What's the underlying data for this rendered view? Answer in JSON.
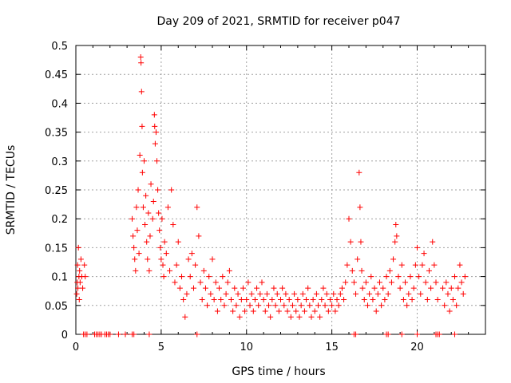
{
  "chart_data": {
    "type": "scatter",
    "title": "Day 209 of 2021, SRMTID for receiver p047",
    "xlabel": "GPS time / hours",
    "ylabel": "SRMTID / TECUs",
    "xlim": [
      0,
      24
    ],
    "ylim": [
      0,
      0.5
    ],
    "xticks": [
      0,
      5,
      10,
      15,
      20
    ],
    "yticks": [
      0,
      0.05,
      0.1,
      0.15,
      0.2,
      0.25,
      0.3,
      0.35,
      0.4,
      0.45,
      0.5
    ],
    "xtick_labels": [
      "0",
      "5",
      "10",
      "15",
      "20"
    ],
    "ytick_labels": [
      "0",
      "0.05",
      "0.1",
      "0.15",
      "0.2",
      "0.25",
      "0.3",
      "0.35",
      "0.4",
      "0.45",
      "0.5"
    ],
    "grid": true,
    "marker": "+",
    "color": "#ff0000",
    "series": [
      {
        "name": "SRMTID",
        "points": [
          [
            0.05,
            0.07
          ],
          [
            0.08,
            0.09
          ],
          [
            0.1,
            0.12
          ],
          [
            0.12,
            0.08
          ],
          [
            0.15,
            0.15
          ],
          [
            0.18,
            0.1
          ],
          [
            0.2,
            0.06
          ],
          [
            0.22,
            0.11
          ],
          [
            0.25,
            0.09
          ],
          [
            0.3,
            0.13
          ],
          [
            0.35,
            0.1
          ],
          [
            0.4,
            0.08
          ],
          [
            0.5,
            0.12
          ],
          [
            0.55,
            0.1
          ],
          [
            3.3,
            0.2
          ],
          [
            3.35,
            0.17
          ],
          [
            3.4,
            0.15
          ],
          [
            3.45,
            0.13
          ],
          [
            3.5,
            0.11
          ],
          [
            3.55,
            0.22
          ],
          [
            3.6,
            0.18
          ],
          [
            3.65,
            0.25
          ],
          [
            3.7,
            0.14
          ],
          [
            3.75,
            0.31
          ],
          [
            3.8,
            0.48
          ],
          [
            3.82,
            0.47
          ],
          [
            3.85,
            0.42
          ],
          [
            3.88,
            0.36
          ],
          [
            3.9,
            0.28
          ],
          [
            3.95,
            0.22
          ],
          [
            4.0,
            0.3
          ],
          [
            4.05,
            0.19
          ],
          [
            4.1,
            0.24
          ],
          [
            4.15,
            0.16
          ],
          [
            4.2,
            0.13
          ],
          [
            4.25,
            0.21
          ],
          [
            4.3,
            0.11
          ],
          [
            4.35,
            0.17
          ],
          [
            4.4,
            0.26
          ],
          [
            4.5,
            0.2
          ],
          [
            4.55,
            0.23
          ],
          [
            4.6,
            0.38
          ],
          [
            4.62,
            0.36
          ],
          [
            4.65,
            0.33
          ],
          [
            4.7,
            0.35
          ],
          [
            4.75,
            0.3
          ],
          [
            4.8,
            0.25
          ],
          [
            4.85,
            0.21
          ],
          [
            4.9,
            0.18
          ],
          [
            4.95,
            0.15
          ],
          [
            5.0,
            0.13
          ],
          [
            5.05,
            0.2
          ],
          [
            5.1,
            0.12
          ],
          [
            5.15,
            0.1
          ],
          [
            5.2,
            0.16
          ],
          [
            5.3,
            0.14
          ],
          [
            5.4,
            0.22
          ],
          [
            5.5,
            0.11
          ],
          [
            5.6,
            0.25
          ],
          [
            5.7,
            0.19
          ],
          [
            5.8,
            0.09
          ],
          [
            5.9,
            0.12
          ],
          [
            6.0,
            0.16
          ],
          [
            6.1,
            0.08
          ],
          [
            6.2,
            0.1
          ],
          [
            6.3,
            0.06
          ],
          [
            6.4,
            0.03
          ],
          [
            6.5,
            0.07
          ],
          [
            6.6,
            0.13
          ],
          [
            6.7,
            0.1
          ],
          [
            6.8,
            0.14
          ],
          [
            6.9,
            0.08
          ],
          [
            7.0,
            0.12
          ],
          [
            7.1,
            0.22
          ],
          [
            7.2,
            0.17
          ],
          [
            7.3,
            0.09
          ],
          [
            7.4,
            0.06
          ],
          [
            7.5,
            0.11
          ],
          [
            7.6,
            0.08
          ],
          [
            7.7,
            0.05
          ],
          [
            7.8,
            0.1
          ],
          [
            7.9,
            0.07
          ],
          [
            8.0,
            0.13
          ],
          [
            8.1,
            0.06
          ],
          [
            8.2,
            0.09
          ],
          [
            8.3,
            0.04
          ],
          [
            8.4,
            0.08
          ],
          [
            8.5,
            0.06
          ],
          [
            8.6,
            0.1
          ],
          [
            8.7,
            0.05
          ],
          [
            8.8,
            0.07
          ],
          [
            8.9,
            0.09
          ],
          [
            9.0,
            0.11
          ],
          [
            9.1,
            0.06
          ],
          [
            9.2,
            0.04
          ],
          [
            9.3,
            0.08
          ],
          [
            9.4,
            0.05
          ],
          [
            9.5,
            0.07
          ],
          [
            9.6,
            0.03
          ],
          [
            9.7,
            0.06
          ],
          [
            9.8,
            0.08
          ],
          [
            9.9,
            0.04
          ],
          [
            10.0,
            0.06
          ],
          [
            10.1,
            0.09
          ],
          [
            10.2,
            0.05
          ],
          [
            10.3,
            0.07
          ],
          [
            10.4,
            0.04
          ],
          [
            10.5,
            0.06
          ],
          [
            10.6,
            0.08
          ],
          [
            10.7,
            0.05
          ],
          [
            10.8,
            0.07
          ],
          [
            10.9,
            0.09
          ],
          [
            11.0,
            0.06
          ],
          [
            11.1,
            0.04
          ],
          [
            11.2,
            0.07
          ],
          [
            11.3,
            0.05
          ],
          [
            11.4,
            0.03
          ],
          [
            11.5,
            0.06
          ],
          [
            11.6,
            0.08
          ],
          [
            11.7,
            0.05
          ],
          [
            11.8,
            0.07
          ],
          [
            11.9,
            0.04
          ],
          [
            12.0,
            0.06
          ],
          [
            12.1,
            0.08
          ],
          [
            12.2,
            0.05
          ],
          [
            12.3,
            0.07
          ],
          [
            12.4,
            0.04
          ],
          [
            12.5,
            0.06
          ],
          [
            12.6,
            0.03
          ],
          [
            12.7,
            0.05
          ],
          [
            12.8,
            0.07
          ],
          [
            12.9,
            0.04
          ],
          [
            13.0,
            0.06
          ],
          [
            13.1,
            0.03
          ],
          [
            13.2,
            0.05
          ],
          [
            13.3,
            0.07
          ],
          [
            13.4,
            0.04
          ],
          [
            13.5,
            0.06
          ],
          [
            13.6,
            0.08
          ],
          [
            13.7,
            0.05
          ],
          [
            13.8,
            0.03
          ],
          [
            13.9,
            0.06
          ],
          [
            14.0,
            0.04
          ],
          [
            14.1,
            0.07
          ],
          [
            14.2,
            0.05
          ],
          [
            14.3,
            0.03
          ],
          [
            14.4,
            0.06
          ],
          [
            14.5,
            0.08
          ],
          [
            14.6,
            0.05
          ],
          [
            14.7,
            0.07
          ],
          [
            14.8,
            0.04
          ],
          [
            14.9,
            0.06
          ],
          [
            15.0,
            0.05
          ],
          [
            15.1,
            0.07
          ],
          [
            15.2,
            0.04
          ],
          [
            15.3,
            0.06
          ],
          [
            15.4,
            0.05
          ],
          [
            15.5,
            0.07
          ],
          [
            15.6,
            0.08
          ],
          [
            15.7,
            0.06
          ],
          [
            15.8,
            0.09
          ],
          [
            15.9,
            0.12
          ],
          [
            16.0,
            0.2
          ],
          [
            16.1,
            0.16
          ],
          [
            16.2,
            0.11
          ],
          [
            16.3,
            0.09
          ],
          [
            16.4,
            0.07
          ],
          [
            16.5,
            0.13
          ],
          [
            16.6,
            0.28
          ],
          [
            16.65,
            0.22
          ],
          [
            16.7,
            0.16
          ],
          [
            16.75,
            0.11
          ],
          [
            16.8,
            0.08
          ],
          [
            16.9,
            0.06
          ],
          [
            17.0,
            0.09
          ],
          [
            17.1,
            0.05
          ],
          [
            17.2,
            0.07
          ],
          [
            17.3,
            0.1
          ],
          [
            17.4,
            0.06
          ],
          [
            17.5,
            0.08
          ],
          [
            17.6,
            0.04
          ],
          [
            17.7,
            0.07
          ],
          [
            17.8,
            0.09
          ],
          [
            17.9,
            0.05
          ],
          [
            18.0,
            0.08
          ],
          [
            18.1,
            0.06
          ],
          [
            18.2,
            0.1
          ],
          [
            18.3,
            0.07
          ],
          [
            18.4,
            0.11
          ],
          [
            18.5,
            0.09
          ],
          [
            18.6,
            0.13
          ],
          [
            18.7,
            0.16
          ],
          [
            18.75,
            0.19
          ],
          [
            18.8,
            0.17
          ],
          [
            18.9,
            0.1
          ],
          [
            19.0,
            0.08
          ],
          [
            19.1,
            0.12
          ],
          [
            19.2,
            0.06
          ],
          [
            19.3,
            0.09
          ],
          [
            19.4,
            0.05
          ],
          [
            19.5,
            0.07
          ],
          [
            19.6,
            0.1
          ],
          [
            19.7,
            0.06
          ],
          [
            19.8,
            0.08
          ],
          [
            19.9,
            0.12
          ],
          [
            20.0,
            0.15
          ],
          [
            20.1,
            0.1
          ],
          [
            20.2,
            0.07
          ],
          [
            20.3,
            0.12
          ],
          [
            20.4,
            0.14
          ],
          [
            20.5,
            0.09
          ],
          [
            20.6,
            0.06
          ],
          [
            20.7,
            0.11
          ],
          [
            20.8,
            0.08
          ],
          [
            20.9,
            0.16
          ],
          [
            21.0,
            0.12
          ],
          [
            21.1,
            0.09
          ],
          [
            21.2,
            0.06
          ],
          [
            21.5,
            0.08
          ],
          [
            21.6,
            0.05
          ],
          [
            21.7,
            0.09
          ],
          [
            21.8,
            0.07
          ],
          [
            21.9,
            0.04
          ],
          [
            22.0,
            0.08
          ],
          [
            22.1,
            0.06
          ],
          [
            22.2,
            0.1
          ],
          [
            22.3,
            0.05
          ],
          [
            22.4,
            0.08
          ],
          [
            22.5,
            0.12
          ],
          [
            22.6,
            0.09
          ],
          [
            22.7,
            0.07
          ],
          [
            22.8,
            0.1
          ],
          [
            0.45,
            0
          ],
          [
            0.55,
            0
          ],
          [
            0.65,
            0
          ],
          [
            1.1,
            0
          ],
          [
            1.2,
            0
          ],
          [
            1.3,
            0
          ],
          [
            1.4,
            0
          ],
          [
            1.5,
            0
          ],
          [
            1.7,
            0
          ],
          [
            1.8,
            0
          ],
          [
            1.9,
            0
          ],
          [
            2.0,
            0
          ],
          [
            2.5,
            0
          ],
          [
            2.9,
            0
          ],
          [
            3.3,
            0
          ],
          [
            3.4,
            0
          ],
          [
            4.3,
            0
          ],
          [
            7.1,
            0
          ],
          [
            16.3,
            0
          ],
          [
            16.4,
            0
          ],
          [
            18.2,
            0
          ],
          [
            18.3,
            0
          ],
          [
            19.1,
            0
          ],
          [
            20.0,
            0
          ],
          [
            21.1,
            0
          ],
          [
            21.2,
            0
          ],
          [
            21.3,
            0
          ],
          [
            22.2,
            0
          ]
        ]
      }
    ]
  }
}
